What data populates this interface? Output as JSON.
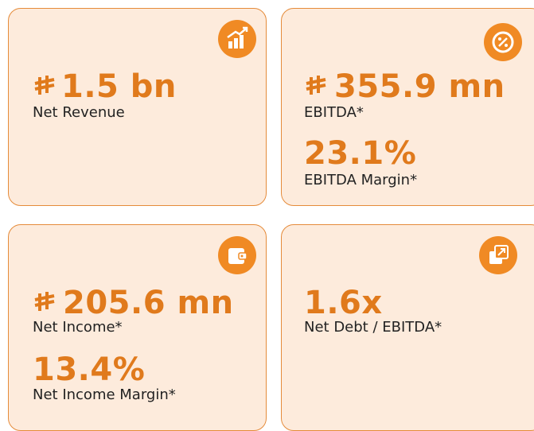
{
  "cards": [
    {
      "metrics": [
        {
          "value": "1.5 bn",
          "label": "Net Revenue"
        }
      ]
    },
    {
      "metrics": [
        {
          "value": "355.9 mn",
          "label": "EBITDA*"
        },
        {
          "value": "23.1%",
          "label": "EBITDA Margin*"
        }
      ]
    },
    {
      "metrics": [
        {
          "value": "205.6 mn",
          "label": "Net Income*"
        },
        {
          "value": "13.4%",
          "label": "Net Income Margin*"
        }
      ]
    },
    {
      "metrics": [
        {
          "value": "1.6x",
          "label": "Net Debt / EBITDA*"
        }
      ]
    }
  ]
}
